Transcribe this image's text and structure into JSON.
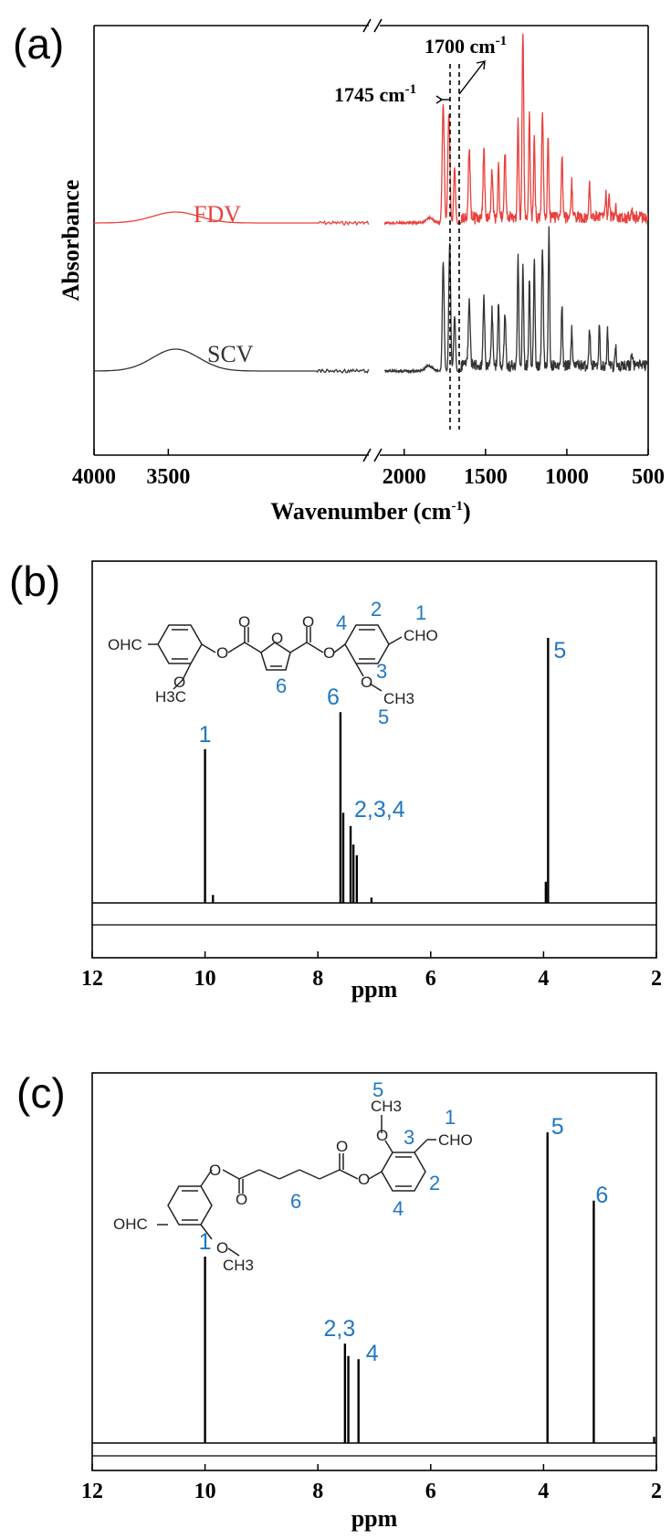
{
  "chart_data": [
    {
      "panel": "(a)",
      "type": "line",
      "xlabel": "Wavenumber (cm",
      "xlabel_sup": "-1",
      "xlabel_end": ")",
      "ylabel": "Absorbance",
      "xticks": [
        "4000",
        "3500",
        "2000",
        "1500",
        "1000",
        "500"
      ],
      "x_axis_break": true,
      "xlim": [
        4000,
        500
      ],
      "series": [
        {
          "name": "FDV",
          "color": "#e8403c"
        },
        {
          "name": "SCV",
          "color": "#333333"
        }
      ],
      "annotations": [
        {
          "text": "1745 cm",
          "sup": "-1",
          "x": 1745
        },
        {
          "text": "1700 cm",
          "sup": "-1",
          "x": 1700
        }
      ]
    },
    {
      "panel": "(b)",
      "type": "line",
      "xlabel": "ppm",
      "xticks": [
        "12",
        "10",
        "8",
        "6",
        "4",
        "2"
      ],
      "xlim": [
        12,
        2
      ],
      "peaks": [
        {
          "ppm": 10.0,
          "height": 0.58,
          "label": "1"
        },
        {
          "ppm": 9.86,
          "height": 0.03
        },
        {
          "ppm": 7.6,
          "height": 0.72,
          "label": "6"
        },
        {
          "ppm": 7.55,
          "height": 0.34
        },
        {
          "ppm": 7.42,
          "height": 0.29,
          "label": "2,3,4"
        },
        {
          "ppm": 7.37,
          "height": 0.22
        },
        {
          "ppm": 7.31,
          "height": 0.18
        },
        {
          "ppm": 7.05,
          "height": 0.02
        },
        {
          "ppm": 3.96,
          "height": 0.08
        },
        {
          "ppm": 3.92,
          "height": 1.0,
          "label": "5"
        }
      ],
      "structure_labels": {
        "left_cho": "OHC",
        "left_ome": "H3C",
        "right_cho": "CHO",
        "right_ome": "CH3",
        "n1": "1",
        "n2": "2",
        "n3": "3",
        "n4": "4",
        "n5": "5",
        "n6": "6"
      }
    },
    {
      "panel": "(c)",
      "type": "line",
      "xlabel": "ppm",
      "xticks": [
        "12",
        "10",
        "8",
        "6",
        "4",
        "2"
      ],
      "xlim": [
        12,
        2
      ],
      "peaks": [
        {
          "ppm": 10.0,
          "height": 0.6,
          "label": "1"
        },
        {
          "ppm": 7.52,
          "height": 0.32,
          "label": "2,3"
        },
        {
          "ppm": 7.46,
          "height": 0.28
        },
        {
          "ppm": 7.28,
          "height": 0.27,
          "label": "4"
        },
        {
          "ppm": 3.93,
          "height": 1.0,
          "label": "5"
        },
        {
          "ppm": 3.11,
          "height": 0.78,
          "label": "6"
        },
        {
          "ppm": 2.04,
          "height": 0.02
        }
      ],
      "structure_labels": {
        "left_cho": "OHC",
        "left_ome": "CH3",
        "right_cho": "CHO",
        "right_ome": "CH3",
        "n1": "1",
        "n2": "2",
        "n3": "3",
        "n4": "4",
        "n5": "5",
        "n6": "6"
      }
    }
  ]
}
